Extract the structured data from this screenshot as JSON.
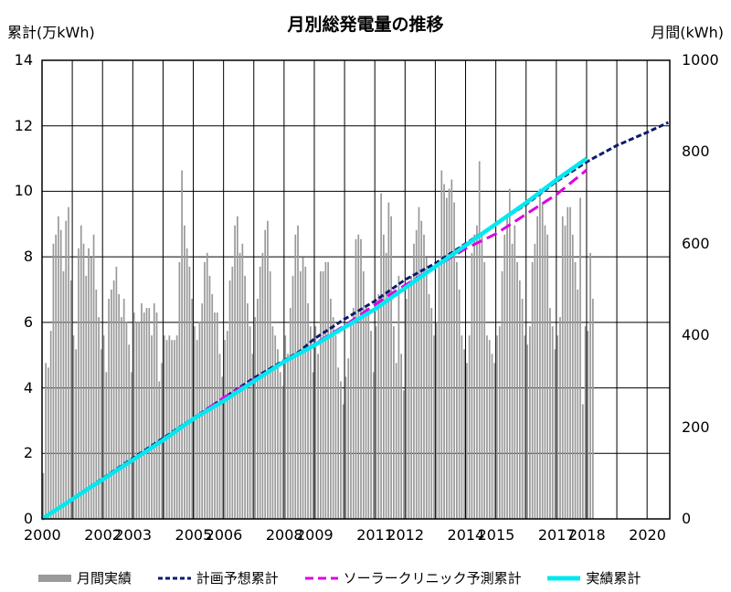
{
  "chart_data": {
    "type": "bar+line",
    "title": "月別総発電量の推移",
    "y_left_label": "累計(万kWh)",
    "y_right_label": "月間(kWh)",
    "y_left_range": [
      0,
      14
    ],
    "y_left_ticks": [
      "0",
      "2",
      "4",
      "6",
      "8",
      "10",
      "12",
      "14"
    ],
    "y_right_range": [
      0,
      1000
    ],
    "y_right_ticks": [
      "0",
      "200",
      "400",
      "600",
      "800",
      "1000"
    ],
    "x_range": [
      2000,
      2020.75
    ],
    "x_ticks": [
      "2000",
      "2002",
      "2003",
      "2005",
      "2006",
      "2008",
      "2009",
      "2011",
      "2012",
      "2014",
      "2015",
      "2017",
      "2018",
      "2020"
    ],
    "grid": true,
    "legend_position": "bottom",
    "colors": {
      "monthly": "#9a9a9a",
      "plan": "#0a1a6e",
      "solar": "#e000e0",
      "actual": "#00e8f0"
    },
    "series": [
      {
        "name": "月間実績",
        "kind": "bar",
        "axis": "right",
        "start": 2000.0,
        "step_months": 1,
        "yearly_profiles": [
          [
            100,
            340,
            330,
            410,
            600,
            620,
            660,
            630,
            540,
            650,
            680,
            520
          ],
          [
            400,
            370,
            590,
            640,
            600,
            530,
            590,
            570,
            620,
            500,
            440,
            370
          ],
          [
            400,
            320,
            480,
            500,
            520,
            550,
            490,
            440,
            480,
            430,
            380,
            320
          ],
          [
            450,
            430,
            430,
            470,
            450,
            460,
            460,
            400,
            470,
            450,
            300,
            340
          ],
          [
            400,
            390,
            400,
            390,
            390,
            400,
            560,
            760,
            640,
            590,
            550,
            480
          ],
          [
            420,
            390,
            430,
            470,
            560,
            580,
            530,
            490,
            450,
            450,
            360,
            310
          ],
          [
            390,
            410,
            520,
            550,
            640,
            660,
            580,
            600,
            530,
            470,
            420,
            360
          ],
          [
            440,
            480,
            550,
            580,
            630,
            650,
            540,
            420,
            400,
            370,
            320,
            290
          ],
          [
            400,
            360,
            460,
            530,
            620,
            640,
            540,
            570,
            550,
            470,
            420,
            320
          ],
          [
            420,
            360,
            540,
            540,
            560,
            560,
            480,
            440,
            400,
            330,
            300,
            250
          ],
          [
            310,
            350,
            430,
            460,
            610,
            620,
            610,
            540,
            460,
            460,
            410,
            320
          ],
          [
            420,
            490,
            710,
            620,
            580,
            690,
            660,
            420,
            340,
            530,
            360,
            280
          ],
          [
            480,
            510,
            530,
            600,
            630,
            680,
            650,
            620,
            570,
            490,
            460,
            400
          ],
          [
            430,
            550,
            760,
            730,
            700,
            720,
            740,
            690,
            560,
            500,
            400,
            370
          ],
          [
            340,
            400,
            580,
            620,
            640,
            780,
            620,
            560,
            400,
            390,
            360,
            340
          ],
          [
            400,
            420,
            540,
            620,
            660,
            720,
            600,
            640,
            560,
            520,
            480,
            400
          ],
          [
            380,
            420,
            560,
            600,
            660,
            720,
            690,
            640,
            620,
            460,
            420,
            370
          ],
          [
            400,
            440,
            660,
            640,
            680,
            680,
            620,
            560,
            500,
            700,
            250,
            420
          ],
          [
            410,
            580,
            480
          ]
        ]
      },
      {
        "name": "計画予想累計",
        "kind": "line",
        "style": "dashed",
        "axis": "left",
        "x": [
          2000.0,
          2003.0,
          2007.0,
          2008.5,
          2009.0,
          2010.0,
          2011.0,
          2012.0,
          2013.0,
          2014.0,
          2015.0,
          2016.0,
          2017.0,
          2018.0,
          2019.0,
          2020.0,
          2020.7
        ],
        "y": [
          0.0,
          1.85,
          4.3,
          5.1,
          5.5,
          6.1,
          6.65,
          7.3,
          7.8,
          8.4,
          9.0,
          9.6,
          10.3,
          10.9,
          11.4,
          11.8,
          12.1
        ]
      },
      {
        "name": "ソーラークリニック予測累計",
        "kind": "line",
        "style": "dashed",
        "axis": "left",
        "x": [
          2000.0,
          2003.5,
          2006.0,
          2008.5,
          2010.0,
          2011.5,
          2013.0,
          2014.0,
          2015.0,
          2016.0,
          2017.0,
          2018.0
        ],
        "y": [
          0.0,
          2.1,
          3.7,
          5.05,
          5.9,
          6.85,
          7.7,
          8.25,
          8.7,
          9.3,
          9.9,
          10.65
        ]
      },
      {
        "name": "実績累計",
        "kind": "line",
        "style": "solid",
        "axis": "left",
        "x": [
          2000.0,
          2001.0,
          2002.0,
          2003.0,
          2004.0,
          2005.0,
          2006.0,
          2007.0,
          2008.0,
          2009.0,
          2010.0,
          2011.0,
          2012.0,
          2013.0,
          2014.0,
          2015.0,
          2016.0,
          2017.0,
          2018.0
        ],
        "y": [
          0.0,
          0.6,
          1.2,
          1.8,
          2.4,
          3.05,
          3.6,
          4.2,
          4.8,
          5.3,
          5.85,
          6.4,
          7.05,
          7.7,
          8.35,
          9.0,
          9.65,
          10.35,
          11.0
        ]
      }
    ]
  }
}
